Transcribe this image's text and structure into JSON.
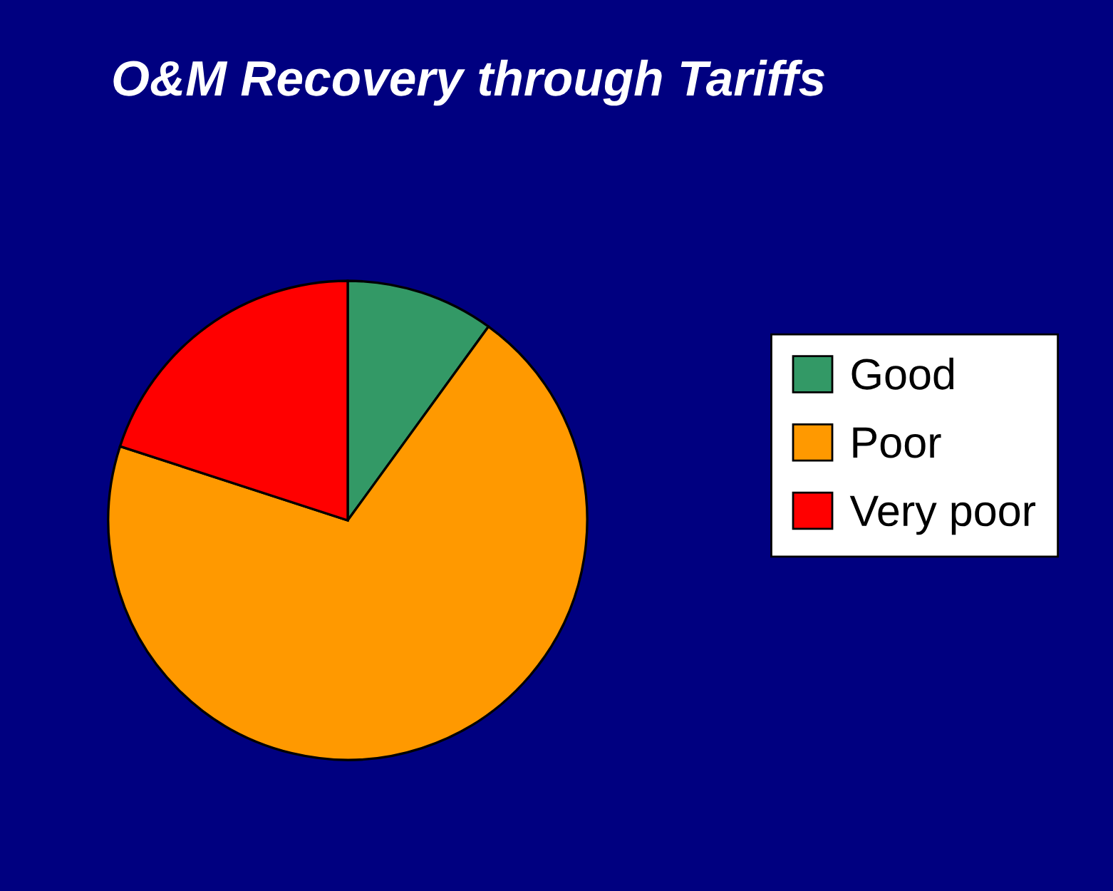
{
  "chart_data": {
    "type": "pie",
    "title": "O&M Recovery through Tariffs",
    "categories": [
      "Good",
      "Poor",
      "Very poor"
    ],
    "values": [
      10,
      70,
      20
    ],
    "colors": [
      "#339966",
      "#ff9900",
      "#ff0000"
    ],
    "legend": "right"
  }
}
